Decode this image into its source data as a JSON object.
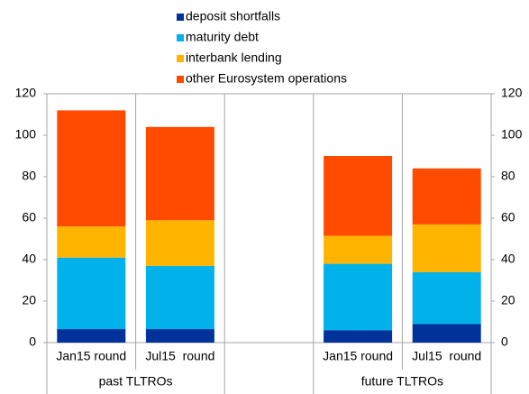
{
  "chart_data": {
    "type": "bar",
    "stacked": true,
    "categories": [
      "Jan15 round",
      "Jul15  round",
      null,
      "Jan15 round",
      "Jul15  round"
    ],
    "groups": [
      "past TLTROs",
      "future TLTROs"
    ],
    "series": [
      {
        "name": "deposit shortfalls",
        "color": "#003299",
        "values": [
          6.5,
          6.5,
          null,
          6,
          9
        ]
      },
      {
        "name": "maturity debt",
        "color": "#00b1ea",
        "values": [
          34.5,
          30.5,
          null,
          32,
          25
        ]
      },
      {
        "name": "interbank lending",
        "color": "#ffb400",
        "values": [
          15,
          22,
          null,
          13.5,
          23
        ]
      },
      {
        "name": "other Eurosystem operations",
        "color": "#ff4b00",
        "values": [
          56,
          45,
          null,
          38.5,
          27
        ]
      }
    ],
    "ylim": [
      0,
      120
    ],
    "yticks": [
      0,
      20,
      40,
      60,
      80,
      100,
      120
    ],
    "y2lim": [
      0,
      120
    ],
    "y2ticks": [
      0,
      20,
      40,
      60,
      80,
      100,
      120
    ],
    "legend": "top"
  }
}
